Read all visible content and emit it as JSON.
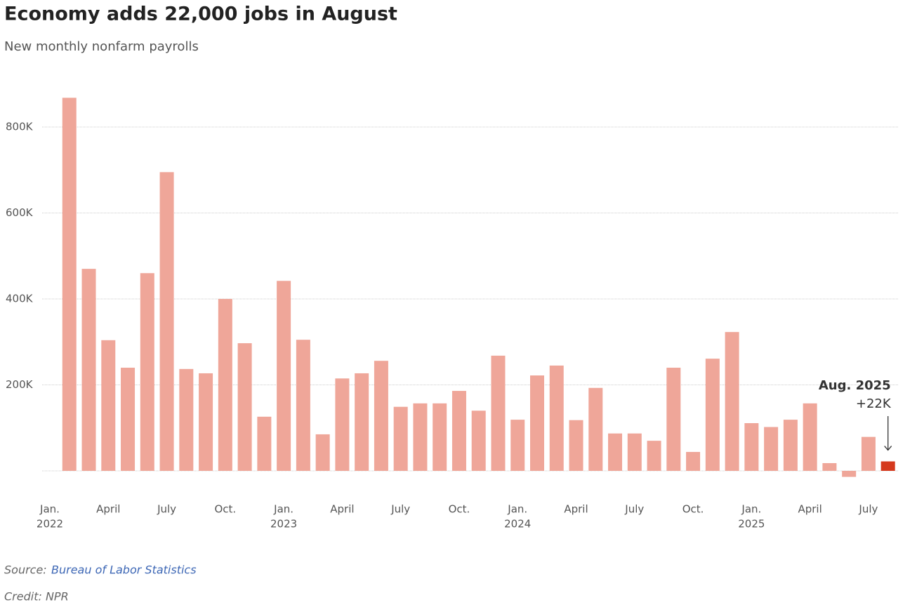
{
  "chart_data": {
    "type": "bar",
    "title": "Economy adds 22,000 jobs in August",
    "subtitle": "New monthly nonfarm payrolls",
    "categories": [
      "Jan.",
      null,
      null,
      "April",
      null,
      null,
      "July",
      null,
      null,
      "Oct.",
      null,
      null,
      "Jan.",
      null,
      null,
      "April",
      null,
      null,
      "July",
      null,
      null,
      "Oct.",
      null,
      null,
      "Jan.",
      null,
      null,
      "April",
      null,
      null,
      "July",
      null,
      null,
      "Oct.",
      null,
      null,
      "Jan.",
      null,
      null,
      "April",
      null,
      null,
      "July",
      null
    ],
    "category_years": [
      "2022",
      null,
      null,
      null,
      null,
      null,
      null,
      null,
      null,
      null,
      null,
      null,
      "2023",
      null,
      null,
      null,
      null,
      null,
      null,
      null,
      null,
      null,
      null,
      null,
      "2024",
      null,
      null,
      null,
      null,
      null,
      null,
      null,
      null,
      null,
      null,
      null,
      "2025",
      null,
      null,
      null,
      null,
      null,
      null,
      null
    ],
    "values": [
      null,
      868000,
      470000,
      304000,
      240000,
      460000,
      695000,
      237000,
      227000,
      400000,
      297000,
      126000,
      442000,
      305000,
      85000,
      215000,
      227000,
      256000,
      149000,
      157000,
      157000,
      186000,
      140000,
      268000,
      119000,
      222000,
      245000,
      118000,
      193000,
      87000,
      87000,
      70000,
      240000,
      44000,
      261000,
      323000,
      111000,
      102000,
      119000,
      157000,
      18000,
      -14000,
      79000,
      22000
    ],
    "color": "#efa699",
    "highlight": {
      "index": 43,
      "color": "#d5391d"
    },
    "annotation": {
      "title": "Aug. 2025",
      "label": "+22K"
    },
    "ylim": [
      -60000,
      900000
    ],
    "yticks": [
      {
        "value": 200000,
        "label": "200K"
      },
      {
        "value": 400000,
        "label": "400K"
      },
      {
        "value": 600000,
        "label": "600K"
      },
      {
        "value": 800000,
        "label": "800K"
      }
    ],
    "grid": true,
    "source_prefix": "Source:",
    "source": "Bureau of Labor Statistics",
    "credit": "Credit: NPR"
  }
}
